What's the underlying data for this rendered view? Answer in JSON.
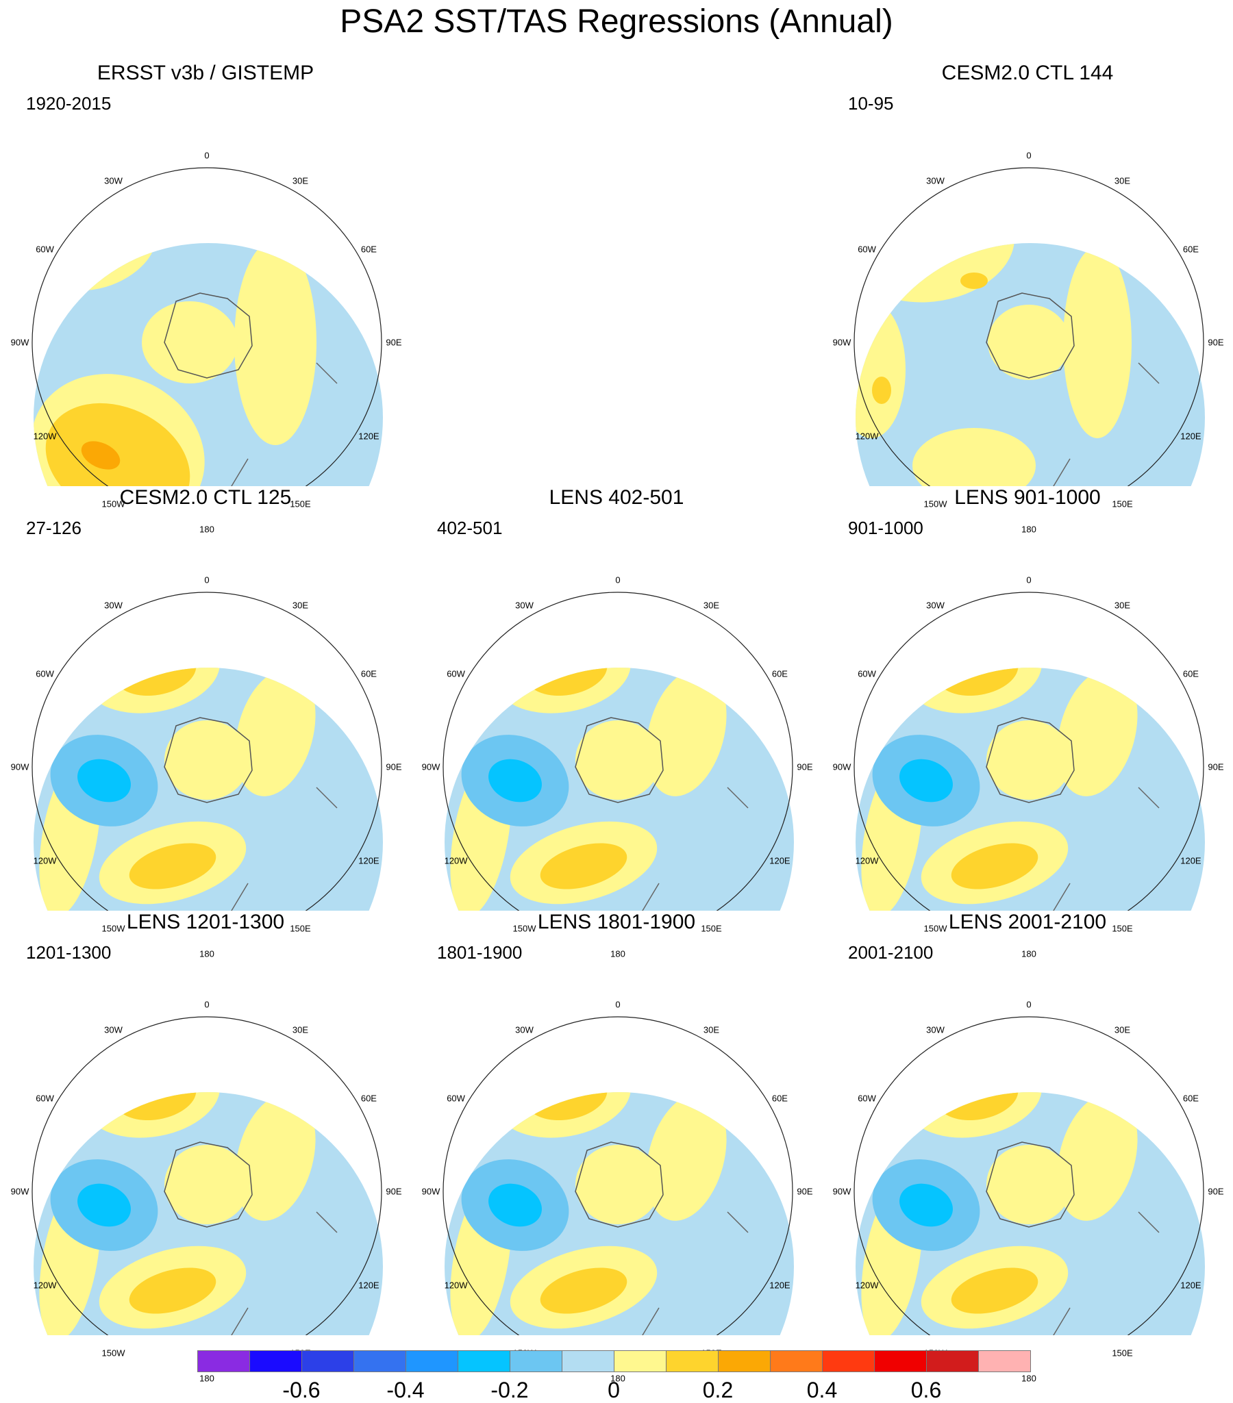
{
  "title": "PSA2 SST/TAS Regressions (Annual)",
  "panels": [
    {
      "id": "ersst",
      "title": "ERSST v3b / GISTEMP",
      "period": "1920-2015",
      "col": 0,
      "row": 0,
      "pattern": "obs"
    },
    {
      "id": "ctl144",
      "title": "CESM2.0 CTL 144",
      "period": "10-95",
      "col": 2,
      "row": 0,
      "pattern": "weak"
    },
    {
      "id": "ctl125",
      "title": "CESM2.0 CTL 125",
      "period": "27-126",
      "col": 0,
      "row": 1,
      "pattern": "psa"
    },
    {
      "id": "lens402",
      "title": "LENS 402-501",
      "period": "402-501",
      "col": 1,
      "row": 1,
      "pattern": "psa"
    },
    {
      "id": "lens901",
      "title": "LENS 901-1000",
      "period": "901-1000",
      "col": 2,
      "row": 1,
      "pattern": "psa"
    },
    {
      "id": "lens1201",
      "title": "LENS 1201-1300",
      "period": "1201-1300",
      "col": 0,
      "row": 2,
      "pattern": "psa"
    },
    {
      "id": "lens1801",
      "title": "LENS 1801-1900",
      "period": "1801-1900",
      "col": 1,
      "row": 2,
      "pattern": "psa"
    },
    {
      "id": "lens2001",
      "title": "LENS 2001-2100",
      "period": "2001-2100",
      "col": 2,
      "row": 2,
      "pattern": "psa"
    }
  ],
  "lon_labels": [
    "0",
    "30E",
    "60E",
    "90E",
    "120E",
    "150E",
    "180",
    "150W",
    "120W",
    "90W",
    "60W",
    "30W"
  ],
  "colorbar": {
    "colors": [
      "#8A2BE2",
      "#1A0BFF",
      "#2C40E8",
      "#3472F0",
      "#1F96FF",
      "#05C4FF",
      "#6CC6F2",
      "#B3DDF2",
      "#FFF88F",
      "#FED42D",
      "#FBA805",
      "#FF7A1A",
      "#FF3A10",
      "#F00000",
      "#D21C1C",
      "#FFB2B2"
    ],
    "tick_labels": [
      "-0.6",
      "-0.4",
      "-0.2",
      "0",
      "0.2",
      "0.4",
      "0.6"
    ],
    "tick_values": [
      -0.6,
      -0.4,
      -0.2,
      0,
      0.2,
      0.4,
      0.6
    ],
    "value_min": -0.8,
    "value_step": 0.1
  }
}
